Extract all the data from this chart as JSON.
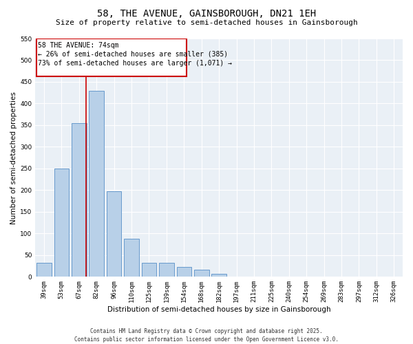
{
  "title": "58, THE AVENUE, GAINSBOROUGH, DN21 1EH",
  "subtitle": "Size of property relative to semi-detached houses in Gainsborough",
  "xlabel": "Distribution of semi-detached houses by size in Gainsborough",
  "ylabel": "Number of semi-detached properties",
  "categories": [
    "39sqm",
    "53sqm",
    "67sqm",
    "82sqm",
    "96sqm",
    "110sqm",
    "125sqm",
    "139sqm",
    "154sqm",
    "168sqm",
    "182sqm",
    "197sqm",
    "211sqm",
    "225sqm",
    "240sqm",
    "254sqm",
    "269sqm",
    "283sqm",
    "297sqm",
    "312sqm",
    "326sqm"
  ],
  "values": [
    33,
    250,
    355,
    430,
    197,
    88,
    33,
    33,
    22,
    17,
    7,
    0,
    0,
    0,
    0,
    0,
    0,
    0,
    0,
    0,
    0
  ],
  "bar_color": "#b8d0e8",
  "bar_edge_color": "#6699cc",
  "marker_line_color": "#cc0000",
  "marker_box_color": "#cc0000",
  "marker_label": "58 THE AVENUE: 74sqm",
  "annotation_line1": "← 26% of semi-detached houses are smaller (385)",
  "annotation_line2": "73% of semi-detached houses are larger (1,071) →",
  "ylim": [
    0,
    550
  ],
  "yticks": [
    0,
    50,
    100,
    150,
    200,
    250,
    300,
    350,
    400,
    450,
    500,
    550
  ],
  "bg_color": "#eaf0f6",
  "footer1": "Contains HM Land Registry data © Crown copyright and database right 2025.",
  "footer2": "Contains public sector information licensed under the Open Government Licence v3.0.",
  "title_fontsize": 10,
  "subtitle_fontsize": 8,
  "axis_label_fontsize": 7.5,
  "tick_fontsize": 6.5,
  "annotation_fontsize": 7,
  "footer_fontsize": 5.5
}
